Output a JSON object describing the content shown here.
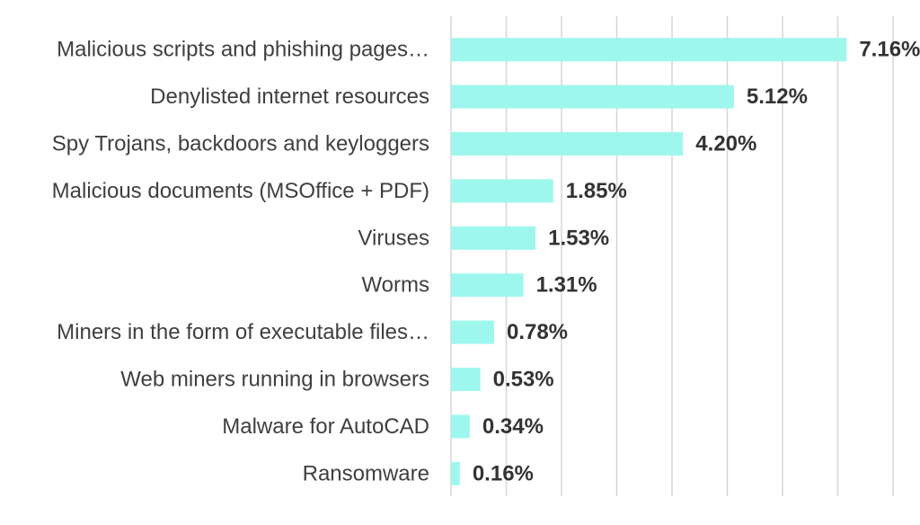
{
  "chart_data": {
    "type": "bar",
    "orientation": "horizontal",
    "categories": [
      "Malicious scripts and phishing pages…",
      "Denylisted internet resources",
      "Spy Trojans, backdoors and keyloggers",
      "Malicious documents (MSOffice + PDF)",
      "Viruses",
      "Worms",
      "Miners in the form of executable files…",
      "Web miners running in browsers",
      "Malware for AutoCAD",
      "Ransomware"
    ],
    "values": [
      7.16,
      5.12,
      4.2,
      1.85,
      1.53,
      1.31,
      0.78,
      0.53,
      0.34,
      0.16
    ],
    "value_labels": [
      "7.16%",
      "5.12%",
      "4.20%",
      "1.85%",
      "1.53%",
      "1.31%",
      "0.78%",
      "0.53%",
      "0.34%",
      "0.16%"
    ],
    "xlim": [
      0,
      8
    ],
    "grid": true,
    "legend": "none",
    "bar_color": "#9ef7ed",
    "title": "",
    "xlabel": "",
    "ylabel": ""
  }
}
